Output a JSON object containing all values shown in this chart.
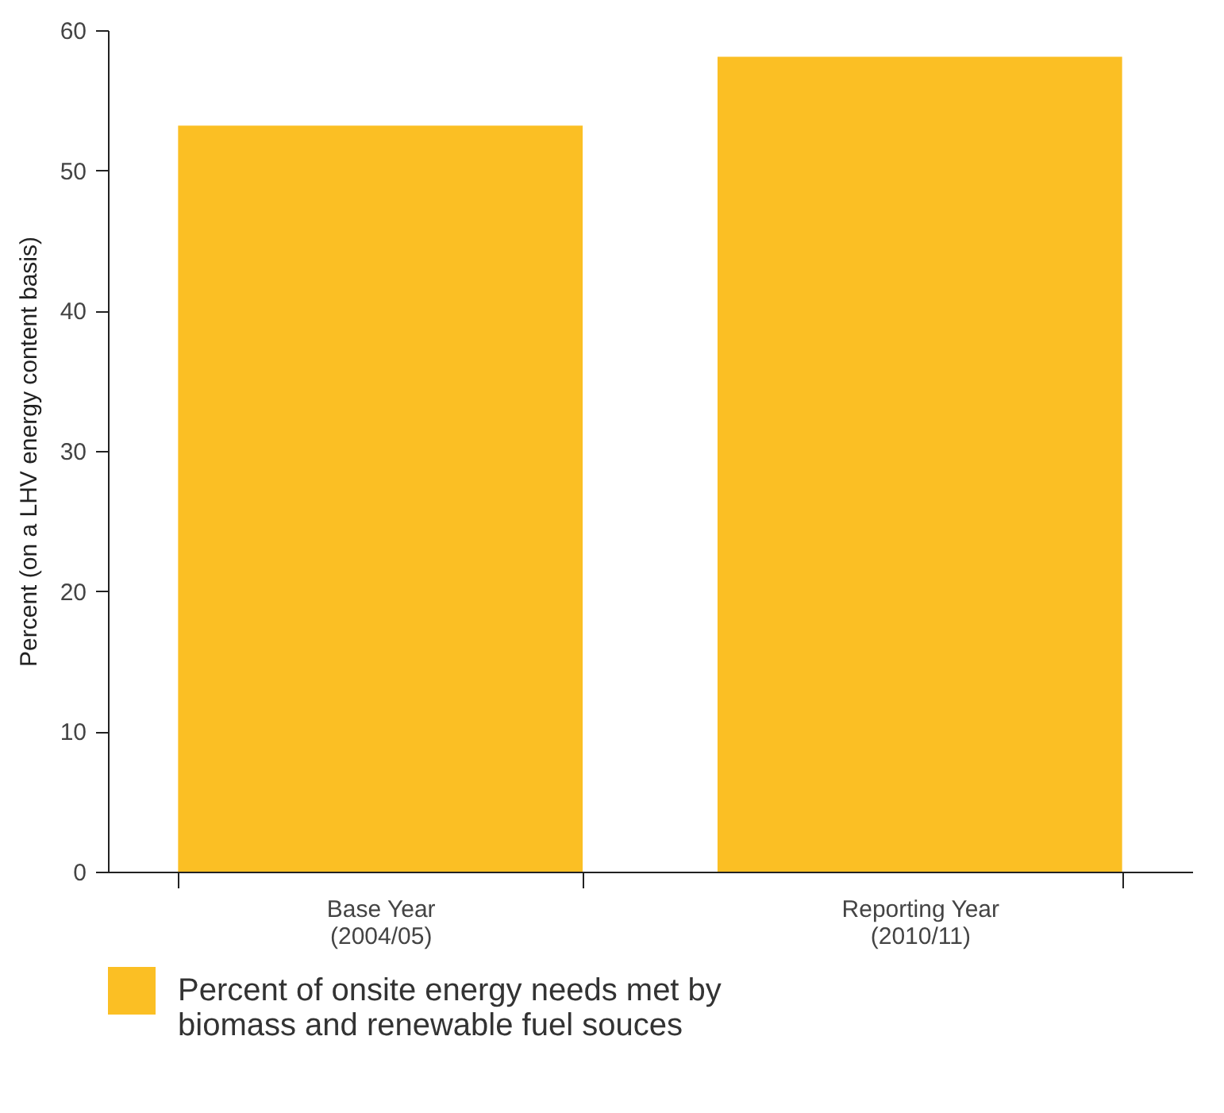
{
  "chart_data": {
    "type": "bar",
    "ylabel": "Percent (on a LHV energy content basis)",
    "categories": [
      "Base Year\n(2004/05)",
      "Reporting Year\n(2010/11)"
    ],
    "series": [
      {
        "name": "Percent of onsite energy needs met by biomass and renewable fuel souces",
        "color": "#fbbf24",
        "values": [
          53.2,
          58.1
        ]
      }
    ],
    "ylim": [
      0,
      60
    ],
    "yticks": [
      0,
      10,
      20,
      30,
      40,
      50,
      60
    ],
    "grid": false,
    "legend": "bottom"
  }
}
